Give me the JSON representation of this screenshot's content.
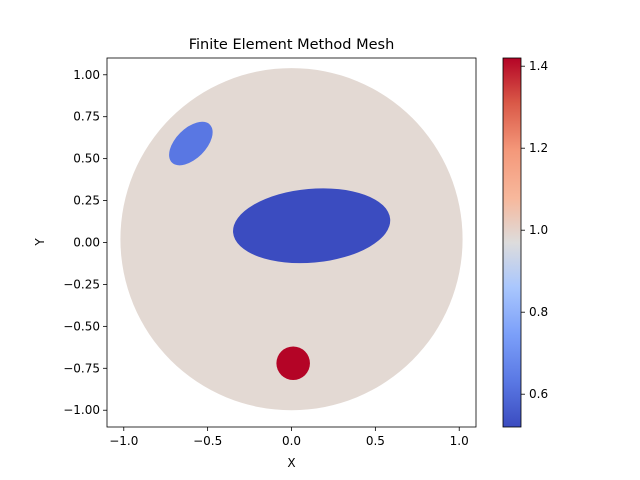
{
  "chart_data": {
    "type": "heatmap",
    "title": "Finite Element Method Mesh",
    "xlabel": "X",
    "ylabel": "Y",
    "xlim": [
      -1.1,
      1.1
    ],
    "ylim": [
      -1.1,
      1.1
    ],
    "x_ticks": [
      -1.0,
      -0.5,
      0.0,
      0.5,
      1.0
    ],
    "x_tick_labels": [
      "−1.0",
      "−0.5",
      "0.0",
      "0.5",
      "1.0"
    ],
    "y_ticks": [
      1.0,
      0.75,
      0.5,
      0.25,
      0.0,
      -0.25,
      -0.5,
      -0.75,
      -1.0
    ],
    "y_tick_labels": [
      "1.00",
      "0.75",
      "0.50",
      "0.25",
      "0.00",
      "−0.25",
      "−0.50",
      "−0.75",
      "−1.00"
    ],
    "grid": false,
    "colormap": "coolwarm",
    "colorbar": {
      "range": [
        0.52,
        1.42
      ],
      "ticks": [
        0.6,
        0.8,
        1.0,
        1.2,
        1.4
      ],
      "tick_labels": [
        "0.6",
        "0.8",
        "1.0",
        "1.2",
        "1.4"
      ]
    },
    "regions": [
      {
        "shape": "circle",
        "center": [
          0.0,
          0.02
        ],
        "radius": 1.02,
        "value": 1.0,
        "color": "#e3d9d3"
      },
      {
        "shape": "ellipse",
        "center": [
          -0.6,
          0.59
        ],
        "rx": 0.16,
        "ry": 0.09,
        "angle": 45,
        "value": 0.55,
        "color": "#5977e3"
      },
      {
        "shape": "ellipse",
        "center": [
          0.12,
          0.1
        ],
        "rx": 0.47,
        "ry": 0.22,
        "angle": 5,
        "value": 0.52,
        "color": "#3b4cc0"
      },
      {
        "shape": "circle",
        "center": [
          0.01,
          -0.72
        ],
        "radius": 0.1,
        "value": 1.42,
        "color": "#b40426"
      }
    ]
  }
}
